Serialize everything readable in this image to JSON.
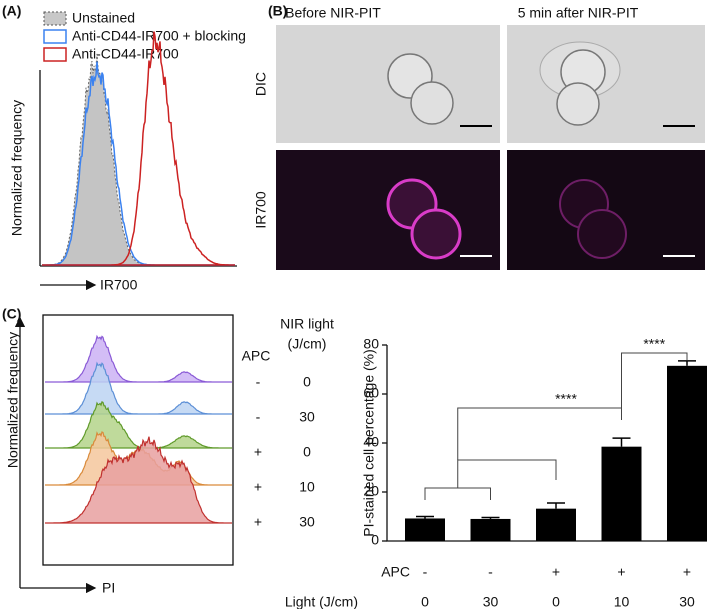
{
  "panel_labels": [
    "(A)",
    "(B)",
    "(C)"
  ],
  "panel_a": {
    "legend": [
      "Unstained",
      "Anti-CD44-IR700 + blocking",
      "Anti-CD44-IR700"
    ],
    "y_label": "Normalized frequency",
    "x_label": "IR700"
  },
  "panel_b": {
    "columns": [
      "Before NIR-PIT",
      "5 min after NIR-PIT"
    ],
    "rows": [
      "DIC",
      "IR700"
    ]
  },
  "panel_c": {
    "y_label": "Normalized frequency",
    "x_label": "PI",
    "table": {
      "headers": [
        "APC",
        "NIR light",
        "(J/cm)"
      ],
      "rows": [
        [
          "-",
          "0"
        ],
        [
          "-",
          "30"
        ],
        [
          "+",
          "0"
        ],
        [
          "+",
          "10"
        ],
        [
          "+",
          "30"
        ]
      ]
    }
  },
  "chart_data": {
    "type": "bar",
    "y_label": "PI-stained cell percentage (%)",
    "category_rows": [
      {
        "label": "APC",
        "values": [
          "-",
          "-",
          "+",
          "+",
          "+"
        ]
      },
      {
        "label": "Light (J/cm)",
        "values": [
          "0",
          "30",
          "0",
          "10",
          "30"
        ]
      }
    ],
    "values": [
      9.2,
      9.0,
      13.2,
      38.5,
      71.5
    ],
    "errors": [
      0.8,
      0.6,
      2.3,
      3.5,
      2.0
    ],
    "color": "#000000",
    "ylim": [
      0,
      80
    ],
    "yticks": [
      0,
      20,
      40,
      60,
      80
    ],
    "annotations": [
      "****",
      "****"
    ]
  }
}
